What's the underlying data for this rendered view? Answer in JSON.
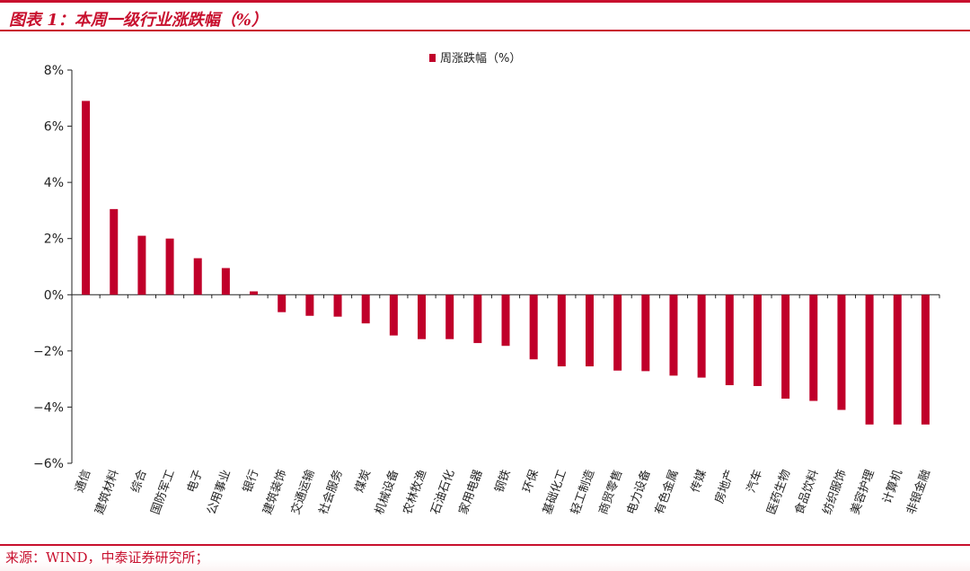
{
  "header": {
    "title": "图表 1：本周一级行业涨跌幅（%）"
  },
  "footer": {
    "source": "来源：WIND，中泰证券研究所；"
  },
  "colors": {
    "accent": "#c8102e",
    "bar": "#c0002a",
    "axis": "#222222"
  },
  "chart_data": {
    "type": "bar",
    "legend": [
      "周涨跌幅（%）"
    ],
    "legend_position": "top-center",
    "grid": false,
    "ylim": [
      -6,
      8
    ],
    "yticks": [
      -6,
      -4,
      -2,
      0,
      2,
      4,
      6,
      8
    ],
    "ytick_labels": [
      "−6%",
      "−4%",
      "−2%",
      "0%",
      "2%",
      "4%",
      "6%",
      "8%"
    ],
    "categories": [
      "通信",
      "建筑材料",
      "综合",
      "国防军工",
      "电子",
      "公用事业",
      "银行",
      "建筑装饰",
      "交通运输",
      "社会服务",
      "煤炭",
      "机械设备",
      "农林牧渔",
      "石油石化",
      "家用电器",
      "钢铁",
      "环保",
      "基础化工",
      "轻工制造",
      "商贸零售",
      "电力设备",
      "有色金属",
      "传媒",
      "房地产",
      "汽车",
      "医药生物",
      "食品饮料",
      "纺织服饰",
      "美容护理",
      "计算机",
      "非银金融"
    ],
    "series": [
      {
        "name": "周涨跌幅（%）",
        "values": [
          6.9,
          3.05,
          2.1,
          2.0,
          1.3,
          0.95,
          0.12,
          -0.62,
          -0.75,
          -0.78,
          -1.02,
          -1.45,
          -1.58,
          -1.58,
          -1.72,
          -1.82,
          -2.3,
          -2.55,
          -2.55,
          -2.7,
          -2.72,
          -2.88,
          -2.95,
          -3.22,
          -3.25,
          -3.7,
          -3.78,
          -4.1,
          -4.62,
          -4.62,
          -4.62
        ]
      }
    ]
  }
}
